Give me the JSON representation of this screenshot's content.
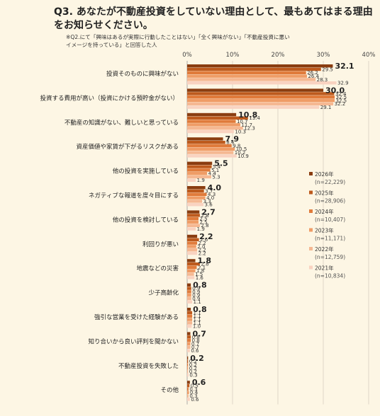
{
  "header": {
    "title": "Q3. あなたが不動産投資をしていない理由として、最もあてはまる理由をお知らせください。",
    "note": "※Q2.にて「興味はあるが実際に行動したことはない」「全く興味がない」「不動産投資に悪い\nイメージを持っている」と回答した人"
  },
  "chart_data": {
    "type": "bar",
    "orientation": "horizontal",
    "title": "Q3. あなたが不動産投資をしていない理由として、最もあてはまる理由をお知らせください。",
    "xlim": [
      0,
      40
    ],
    "xticks": [
      "0%",
      "10%",
      "20%",
      "30%",
      "40%"
    ],
    "grid": true,
    "legend_position": "right",
    "categories": [
      "投資そのものに興味がない",
      "投資する費用が高い（投資にかける預貯金がない）",
      "不動産の知識がない、難しいと思っている",
      "資産価値や家賃が下がるリスクがある",
      "他の投資を実施している",
      "ネガティブな報道を度々目にする",
      "他の投資を検討している",
      "利回りが悪い",
      "地震などの災害",
      "少子高齢化",
      "強引な営業を受けた経験がある",
      "知り合いから良い評判を聞かない",
      "不動産投資を失敗した",
      "その他"
    ],
    "series": [
      {
        "name": "2026年",
        "n": "(n=22,229)",
        "color": "#8a3d10",
        "values": [
          32.1,
          30.0,
          10.8,
          7.9,
          5.5,
          4.0,
          2.7,
          2.2,
          1.8,
          0.8,
          0.8,
          0.7,
          0.2,
          0.6
        ]
      },
      {
        "name": "2025年",
        "n": "(n=28,906)",
        "color": "#bd5a1d",
        "values": [
          29.5,
          32.4,
          13.4,
          8.4,
          5.4,
          3.7,
          2.8,
          2.6,
          2.8,
          0.9,
          1.1,
          0.8,
          0.2,
          0.5
        ]
      },
      {
        "name": "2024年",
        "n": "(n=10,407)",
        "color": "#e07b3b",
        "values": [
          26.2,
          32.5,
          10.7,
          9.8,
          5.1,
          4.3,
          2.5,
          2.2,
          2.1,
          0.9,
          1.1,
          0.8,
          0.2,
          0.3
        ]
      },
      {
        "name": "2023年",
        "n": "(n=11,171)",
        "color": "#ef9c66",
        "values": [
          26.4,
          32.5,
          11.7,
          10.5,
          4.4,
          4.0,
          2.5,
          2.0,
          1.8,
          0.9,
          1.1,
          0.7,
          0.2,
          0.4
        ]
      },
      {
        "name": "2022年",
        "n": "(n=12,759)",
        "color": "#f5b892",
        "values": [
          28.3,
          32.2,
          12.3,
          10.2,
          5.3,
          3.3,
          2.8,
          2.2,
          1.5,
          0.9,
          1.1,
          0.7,
          0.2,
          0.3
        ]
      },
      {
        "name": "2021年",
        "n": "(n=10,834)",
        "color": "#f9d3c1",
        "values": [
          32.9,
          29.1,
          10.3,
          10.9,
          1.9,
          3.6,
          1.9,
          2.2,
          1.6,
          1.1,
          1.0,
          0.6,
          0.3,
          0.6
        ]
      }
    ]
  }
}
